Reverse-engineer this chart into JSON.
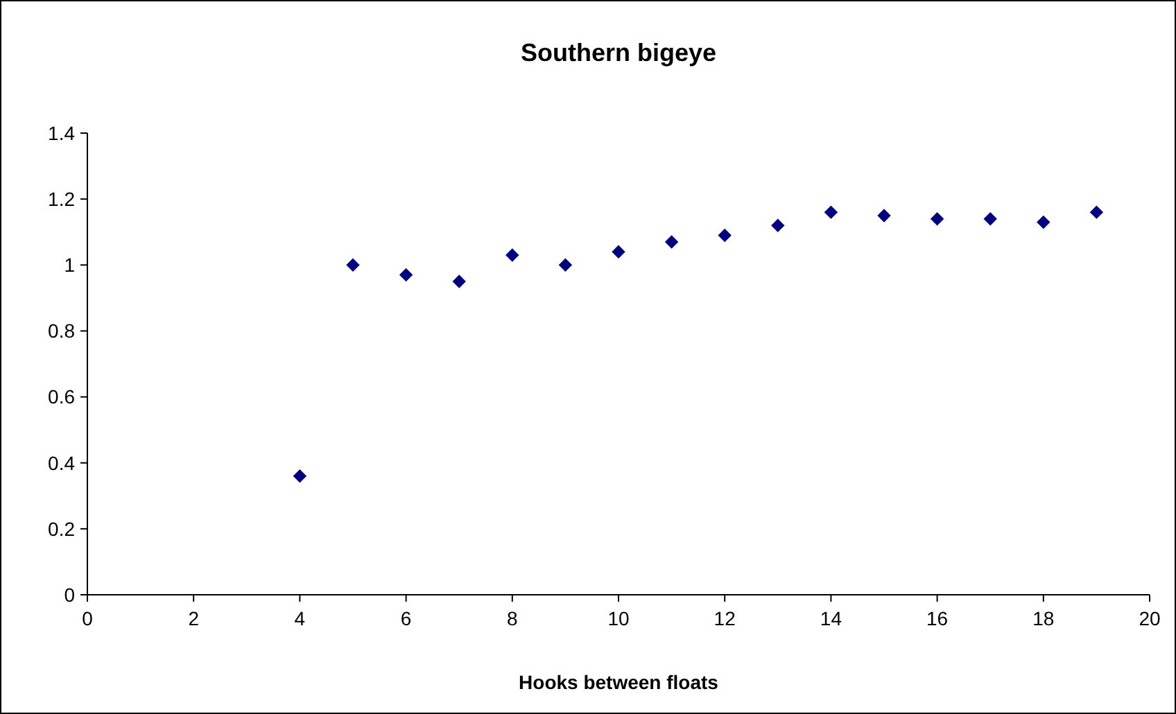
{
  "chart_data": {
    "type": "scatter",
    "title": "Southern bigeye",
    "xlabel": "Hooks between floats",
    "x": [
      4,
      5,
      6,
      7,
      8,
      9,
      10,
      11,
      12,
      13,
      14,
      15,
      16,
      17,
      18,
      19
    ],
    "series": [
      {
        "color": "#000080",
        "values": [
          0.36,
          1.0,
          0.97,
          0.95,
          1.03,
          1.0,
          1.04,
          1.07,
          1.09,
          1.12,
          1.16,
          1.15,
          1.14,
          1.14,
          1.13,
          1.16
        ]
      }
    ],
    "xlim": [
      0,
      20
    ],
    "xticks": [
      0,
      2,
      4,
      6,
      8,
      10,
      12,
      14,
      16,
      18,
      20
    ],
    "ylim": [
      0,
      1.4
    ],
    "yticks": [
      0,
      0.2,
      0.4,
      0.6,
      0.8,
      1,
      1.2,
      1.4
    ],
    "marker": "diamond"
  }
}
